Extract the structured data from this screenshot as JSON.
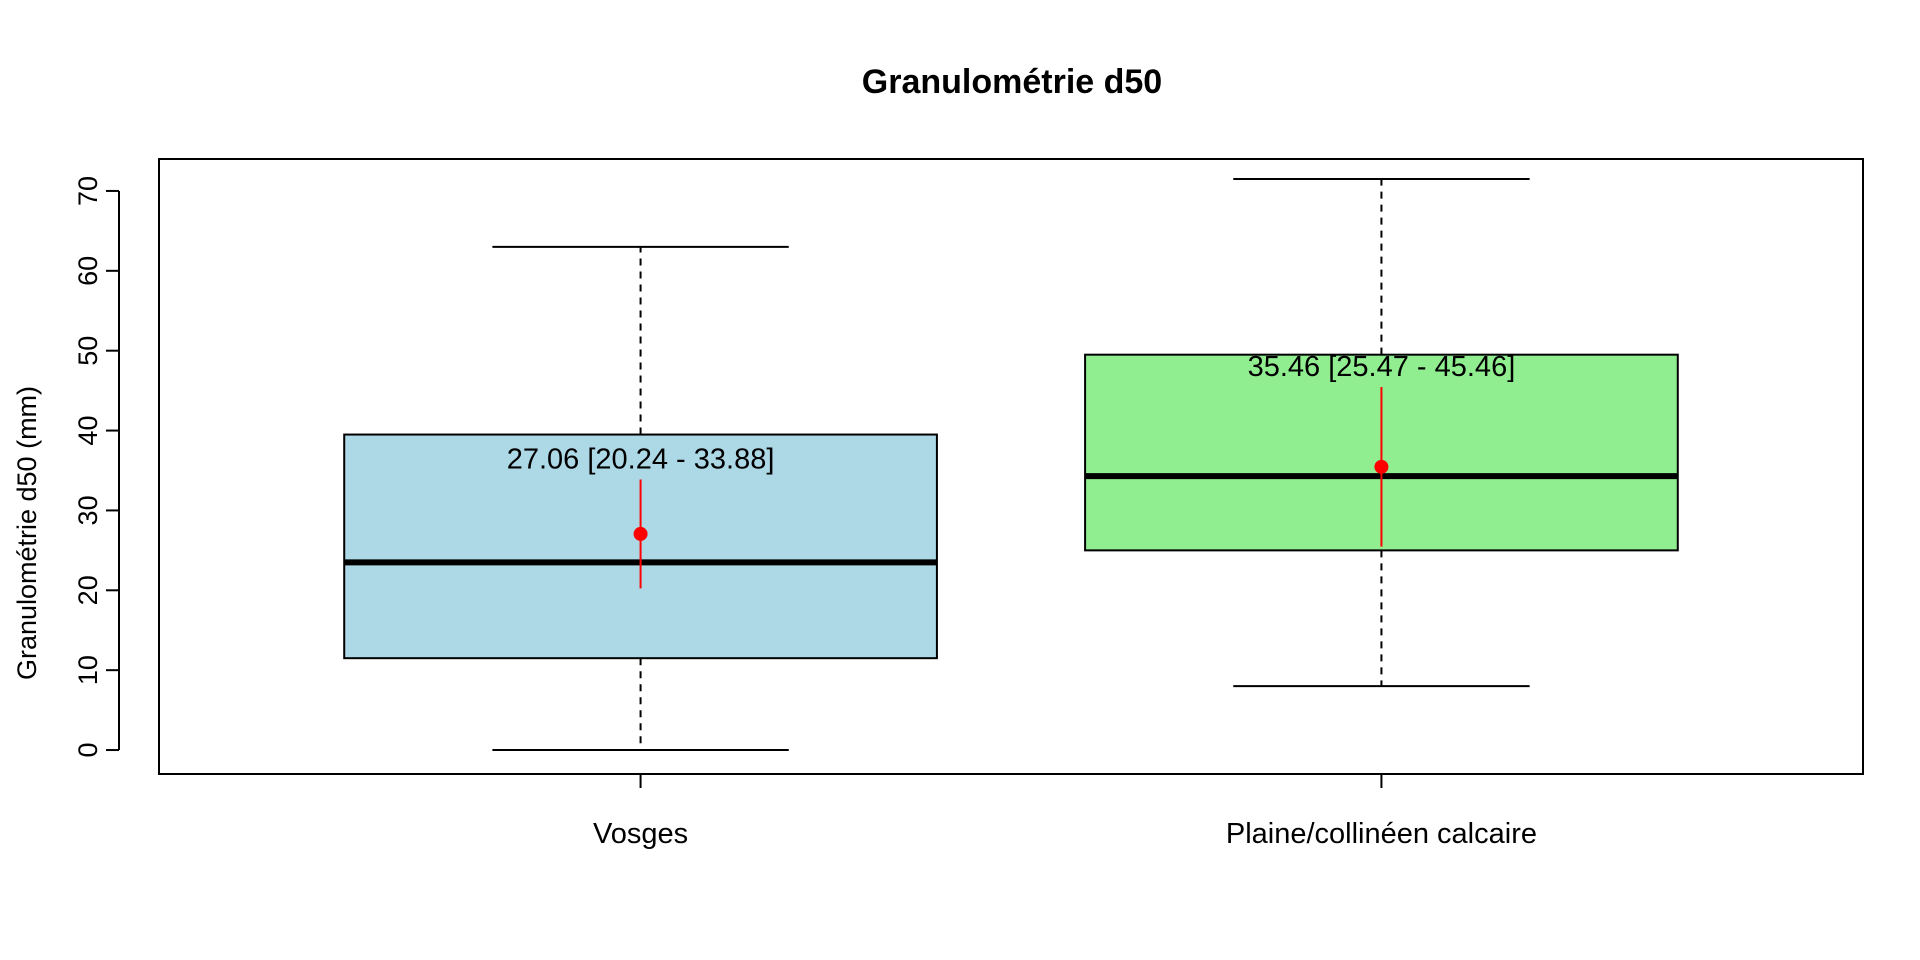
{
  "chart_data": {
    "type": "box",
    "title": "Granulométrie d50",
    "xlabel": "",
    "ylabel": "Granulométrie d50 (mm)",
    "ylim": [
      -3,
      74
    ],
    "yticks": [
      0,
      10,
      20,
      30,
      40,
      50,
      60,
      70
    ],
    "grid": false,
    "categories": [
      "Vosges",
      "Plaine/collinéen calcaire"
    ],
    "boxes": [
      {
        "category": "Vosges",
        "min": 0,
        "q1": 11.5,
        "median": 23.5,
        "q3": 39.5,
        "max": 63,
        "mean": 27.06,
        "ci": [
          20.24,
          33.88
        ],
        "annotation": "27.06 [20.24 - 33.88]",
        "color": "#add8e6"
      },
      {
        "category": "Plaine/collinéen calcaire",
        "min": 8,
        "q1": 25,
        "median": 34.3,
        "q3": 49.5,
        "max": 71.5,
        "mean": 35.46,
        "ci": [
          25.47,
          45.46
        ],
        "annotation": "35.46 [25.47 - 45.46]",
        "color": "#90ee90"
      }
    ],
    "mean_color": "#ff0000"
  }
}
